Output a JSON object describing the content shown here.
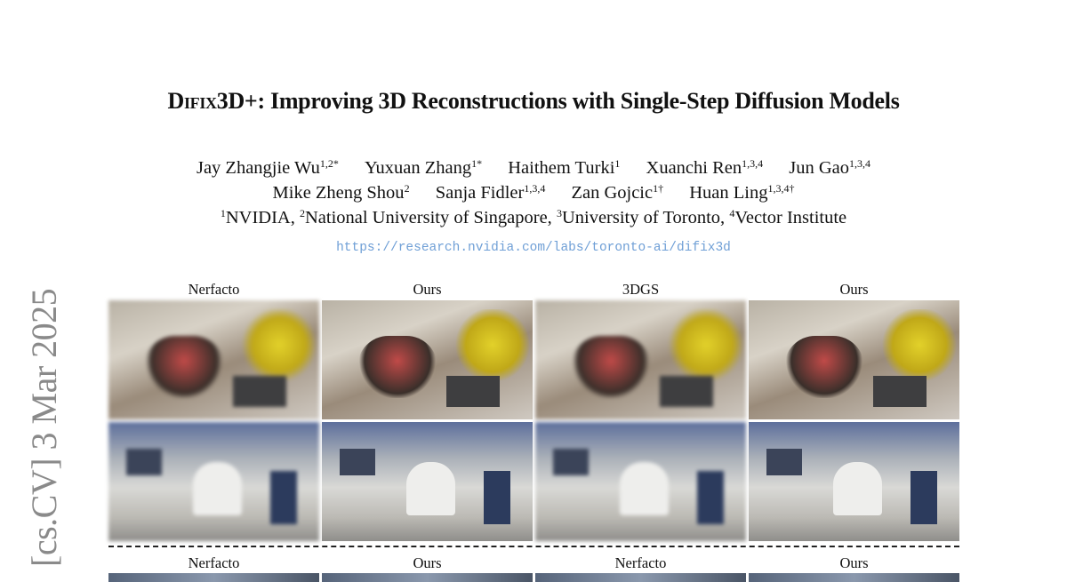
{
  "sidebar": {
    "arxiv_stamp": "[cs.CV]  3 Mar 2025"
  },
  "paper": {
    "title_smallcaps": "Difix",
    "title_rest": "3D+: Improving 3D Reconstructions with Single-Step Diffusion Models",
    "authors": [
      {
        "name": "Jay Zhangjie Wu",
        "sup": "1,2*"
      },
      {
        "name": "Yuxuan Zhang",
        "sup": "1*"
      },
      {
        "name": "Haithem Turki",
        "sup": "1"
      },
      {
        "name": "Xuanchi Ren",
        "sup": "1,3,4"
      },
      {
        "name": "Jun Gao",
        "sup": "1,3,4"
      },
      {
        "name": "Mike Zheng Shou",
        "sup": "2"
      },
      {
        "name": "Sanja Fidler",
        "sup": "1,3,4"
      },
      {
        "name": "Zan Gojcic",
        "sup": "1†"
      },
      {
        "name": "Huan Ling",
        "sup": "1,3,4†"
      }
    ],
    "affiliations": [
      {
        "sup": "1",
        "name": "NVIDIA, "
      },
      {
        "sup": "2",
        "name": "National University of Singapore, "
      },
      {
        "sup": "3",
        "name": "University of Toronto, "
      },
      {
        "sup": "4",
        "name": "Vector Institute"
      }
    ],
    "url": "https://research.nvidia.com/labs/toronto-ai/difix3d"
  },
  "figure": {
    "top_labels": [
      "Nerfacto",
      "Ours",
      "3DGS",
      "Ours"
    ],
    "bottom_labels": [
      "Nerfacto",
      "Ours",
      "Nerfacto",
      "Ours"
    ],
    "rows": [
      {
        "scene": "vintage-cars",
        "cells": [
          "nerfacto-artifacts",
          "ours-clean",
          "3dgs-artifacts",
          "ours-clean"
        ]
      },
      {
        "scene": "building-statue",
        "cells": [
          "nerfacto-artifacts",
          "ours-clean",
          "3dgs-artifacts",
          "ours-clean"
        ]
      }
    ]
  }
}
